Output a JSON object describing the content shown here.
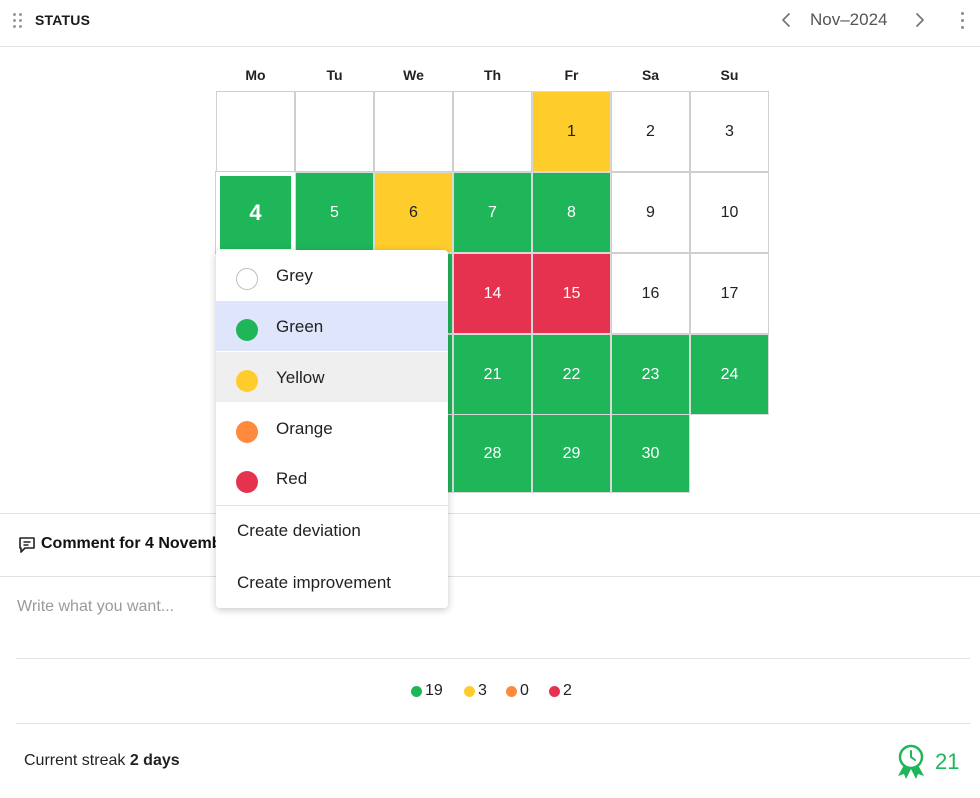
{
  "header": {
    "title": "STATUS",
    "month": "Nov–2024",
    "icons": {
      "drag": "drag-handle-icon",
      "prev": "chevron-left-icon",
      "next": "chevron-right-icon",
      "more": "more-vertical-icon"
    }
  },
  "calendar": {
    "weekdays": [
      "Mo",
      "Tu",
      "We",
      "Th",
      "Fr",
      "Sa",
      "Su"
    ],
    "selected_day": "4",
    "days": [
      {
        "day": "1",
        "status": "yellow"
      },
      {
        "day": "2",
        "status": "none"
      },
      {
        "day": "3",
        "status": "none"
      },
      {
        "day": "4",
        "status": "green"
      },
      {
        "day": "5",
        "status": "green"
      },
      {
        "day": "6",
        "status": "yellow"
      },
      {
        "day": "7",
        "status": "green"
      },
      {
        "day": "8",
        "status": "green"
      },
      {
        "day": "9",
        "status": "none"
      },
      {
        "day": "10",
        "status": "none"
      },
      {
        "day": "14",
        "status": "red"
      },
      {
        "day": "15",
        "status": "red"
      },
      {
        "day": "16",
        "status": "none"
      },
      {
        "day": "17",
        "status": "none"
      },
      {
        "day": "21",
        "status": "green"
      },
      {
        "day": "22",
        "status": "green"
      },
      {
        "day": "23",
        "status": "green"
      },
      {
        "day": "24",
        "status": "green"
      },
      {
        "day": "28",
        "status": "green"
      },
      {
        "day": "29",
        "status": "green"
      },
      {
        "day": "30",
        "status": "green"
      }
    ]
  },
  "status_menu": {
    "options": [
      {
        "label": "Grey",
        "color": "#ffffff",
        "state": "normal"
      },
      {
        "label": "Green",
        "color": "#1fb65a",
        "state": "selected"
      },
      {
        "label": "Yellow",
        "color": "#ffcd2b",
        "state": "hover"
      },
      {
        "label": "Orange",
        "color": "#ff8a3d",
        "state": "normal"
      },
      {
        "label": "Red",
        "color": "#e5334f",
        "state": "normal"
      }
    ],
    "actions": [
      "Create deviation",
      "Create improvement"
    ]
  },
  "comment": {
    "title": "Comment for 4 November",
    "placeholder": "Write what you want...",
    "icon": "comment-icon"
  },
  "stats": [
    {
      "color": "#1fb65a",
      "count": "19"
    },
    {
      "color": "#ffcd2b",
      "count": "3"
    },
    {
      "color": "#ff8a3d",
      "count": "0"
    },
    {
      "color": "#e5334f",
      "count": "2"
    }
  ],
  "footer": {
    "streak_label": "Current streak",
    "streak_value": "2 days",
    "badge_count": "21",
    "badge_icon": "award-ribbon-icon"
  },
  "colors": {
    "green": "#1fb65a",
    "yellow": "#ffcd2b",
    "orange": "#ff8a3d",
    "red": "#e5334f"
  }
}
